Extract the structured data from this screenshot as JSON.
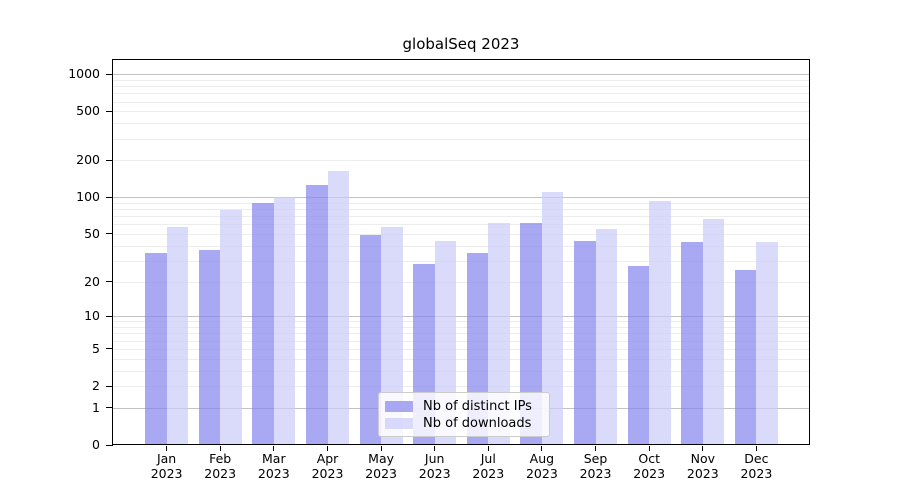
{
  "chart_data": {
    "type": "bar",
    "title": "globalSeq 2023",
    "categories": [
      "Jan",
      "Feb",
      "Mar",
      "Apr",
      "May",
      "Jun",
      "Jul",
      "Aug",
      "Sep",
      "Oct",
      "Nov",
      "Dec"
    ],
    "x_tick_year": "2023",
    "series": [
      {
        "name": "Nb of distinct IPs",
        "color": "rgba(133,133,238,0.7)",
        "values": [
          35,
          37,
          89,
          127,
          49,
          28,
          35,
          61,
          44,
          27,
          43,
          25
        ]
      },
      {
        "name": "Nb of downloads",
        "color": "rgba(202,202,248,0.7)",
        "values": [
          57,
          79,
          100,
          165,
          57,
          44,
          61,
          110,
          55,
          93,
          66,
          43
        ]
      }
    ],
    "y_scale": "log10(value+1)",
    "ylim": [
      0,
      1300
    ],
    "y_axis_ticks": [
      "0",
      "1",
      "2",
      "5",
      "10",
      "20",
      "50",
      "100",
      "200",
      "500",
      "1000"
    ],
    "y_major_gridlines": [
      1,
      10,
      100,
      1000
    ],
    "y_minor_gridlines": [
      2,
      3,
      4,
      5,
      6,
      7,
      8,
      9,
      20,
      30,
      40,
      50,
      60,
      70,
      80,
      90,
      200,
      300,
      400,
      500,
      600,
      700,
      800,
      900
    ],
    "grid": true,
    "legend_position": "lower-center-inside",
    "xlabel": "",
    "ylabel": ""
  },
  "colors": {
    "bar_distinct_ips": "rgba(133,133,238,0.7)",
    "bar_downloads": "rgba(202,202,248,0.7)",
    "major_grid": "#c3c3c3",
    "minor_grid": "#ededed",
    "axis": "#000000",
    "legend_border": "#cccccc",
    "legend_bg": "rgba(255,255,255,0.8)"
  }
}
